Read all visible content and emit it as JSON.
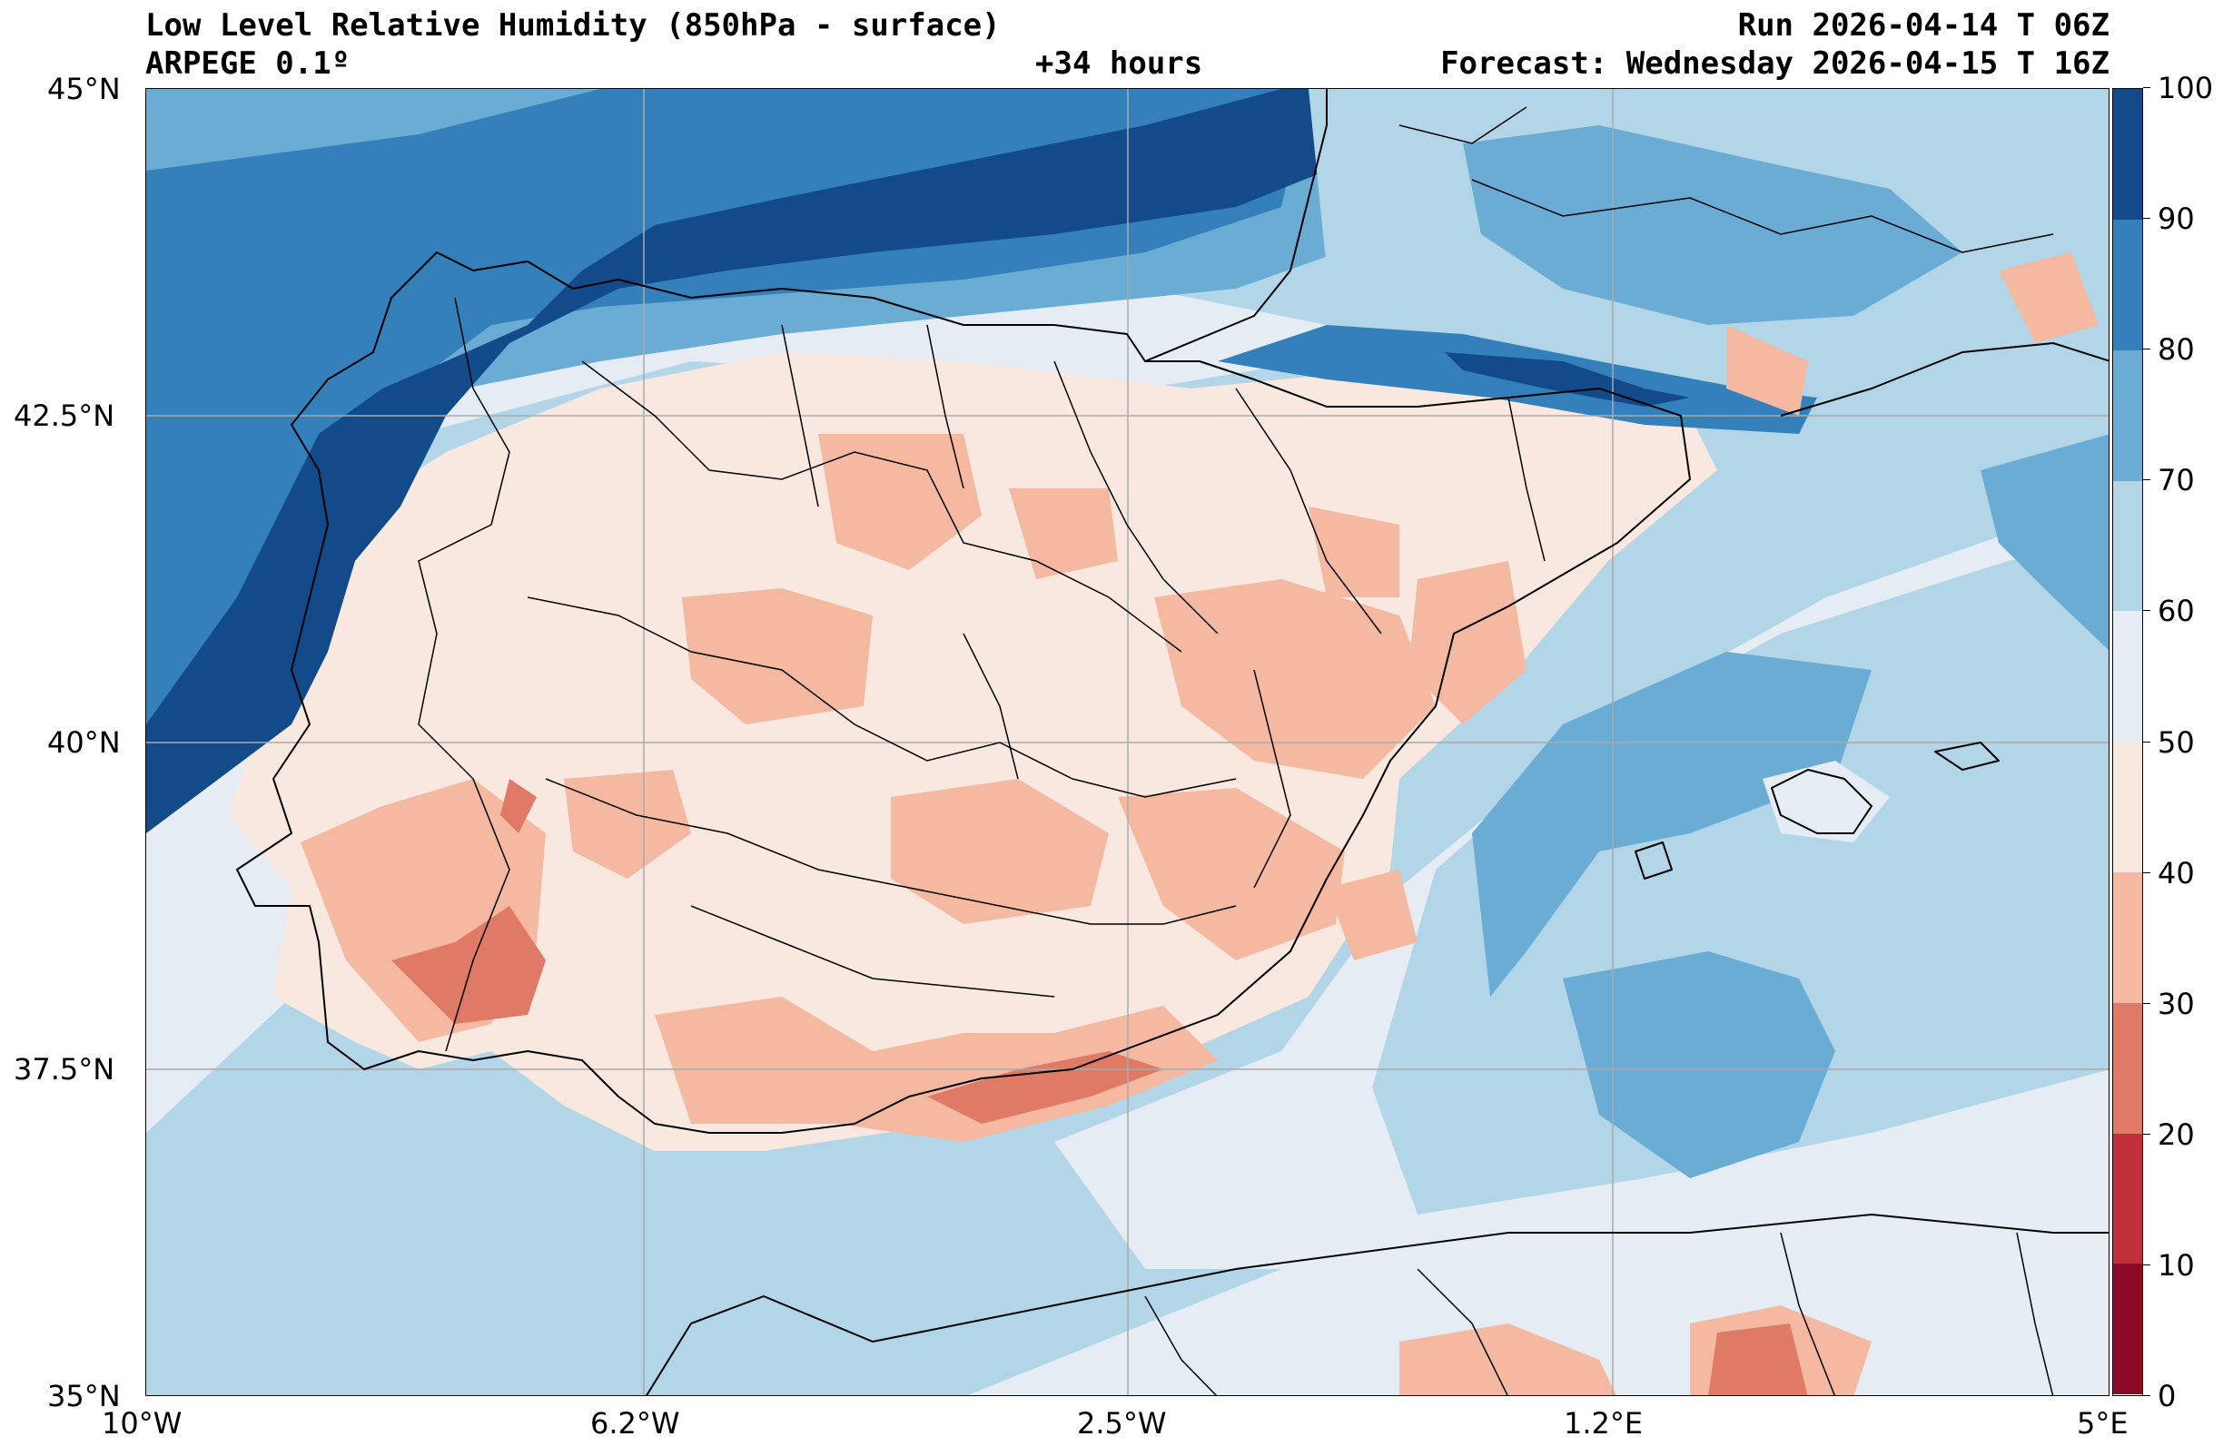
{
  "header": {
    "title": "Low Level Relative Humidity (850hPa - surface)",
    "model": "ARPEGE 0.1º",
    "lead_time": "+34 hours",
    "run": "Run 2026-04-14 T 06Z",
    "forecast": "Forecast: Wednesday 2026-04-15 T 16Z"
  },
  "map": {
    "extent": {
      "lon_min": -10,
      "lon_max": 5,
      "lat_min": 35,
      "lat_max": 45
    },
    "lon_ticks": [
      {
        "value": -10,
        "label": "10°W"
      },
      {
        "value": -6.2,
        "label": "6.2°W"
      },
      {
        "value": -2.5,
        "label": "2.5°W"
      },
      {
        "value": 1.2,
        "label": "1.2°E"
      },
      {
        "value": 5,
        "label": "5°E"
      }
    ],
    "lat_ticks": [
      {
        "value": 45,
        "label": "45°N"
      },
      {
        "value": 42.5,
        "label": "42.5°N"
      },
      {
        "value": 40,
        "label": "40°N"
      },
      {
        "value": 37.5,
        "label": "37.5°N"
      },
      {
        "value": 35,
        "label": "35°N"
      }
    ],
    "gridlines": true,
    "coastline_color": "#000000"
  },
  "colorbar": {
    "unit_range": [
      0,
      100
    ],
    "levels": [
      {
        "from": 0,
        "to": 10,
        "color": "#8b0a26"
      },
      {
        "from": 10,
        "to": 20,
        "color": "#c0303a"
      },
      {
        "from": 20,
        "to": 30,
        "color": "#df7a66"
      },
      {
        "from": 30,
        "to": 40,
        "color": "#f4b9a0"
      },
      {
        "from": 40,
        "to": 50,
        "color": "#f9e8e0"
      },
      {
        "from": 50,
        "to": 60,
        "color": "#e5ecf4"
      },
      {
        "from": 60,
        "to": 70,
        "color": "#b2d5e8"
      },
      {
        "from": 70,
        "to": 80,
        "color": "#6aacd4"
      },
      {
        "from": 80,
        "to": 90,
        "color": "#3380bb"
      },
      {
        "from": 90,
        "to": 100,
        "color": "#124a8a"
      }
    ],
    "tick_labels": [
      "0",
      "10",
      "20",
      "30",
      "40",
      "50",
      "60",
      "70",
      "80",
      "90",
      "100"
    ]
  }
}
